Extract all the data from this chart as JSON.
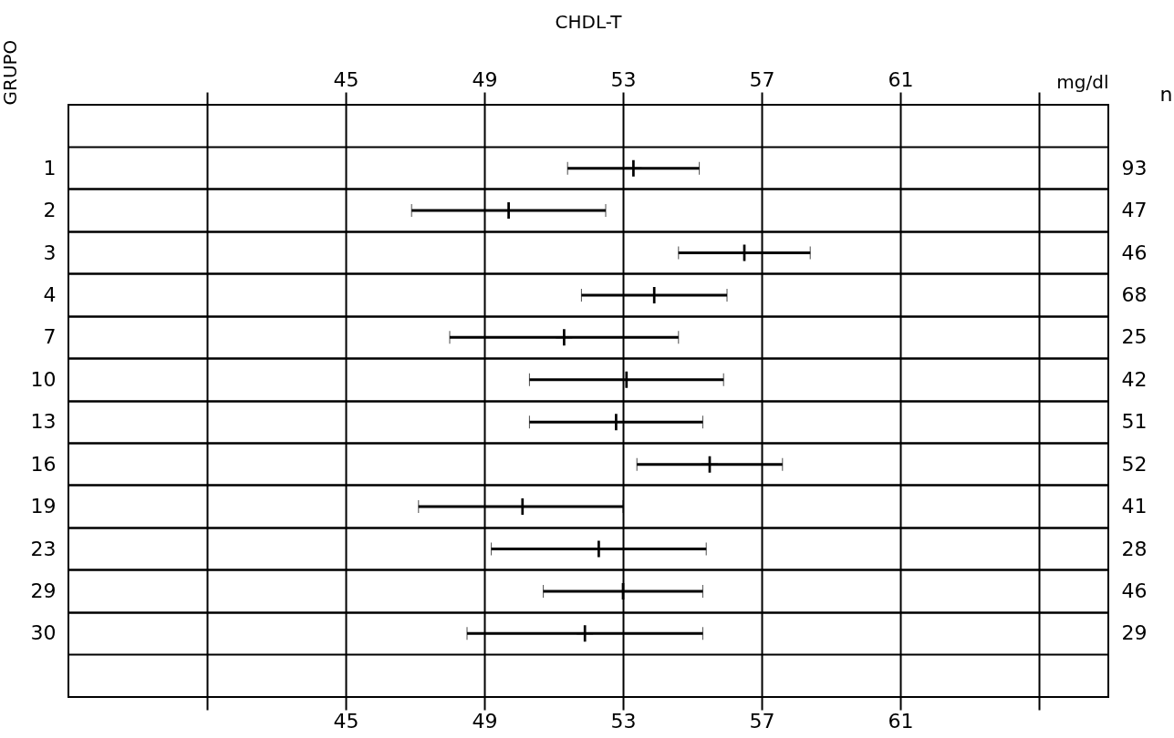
{
  "chart_data": {
    "type": "scatter",
    "orientation": "horizontal",
    "title": "CHDL-T",
    "ylabel": "GRUPO",
    "y2label": "n",
    "x2label": "mg/dl",
    "categories": [
      "1",
      "2",
      "3",
      "4",
      "7",
      "10",
      "13",
      "16",
      "19",
      "23",
      "29",
      "30"
    ],
    "y2_categories": [
      "93",
      "47",
      "46",
      "68",
      "25",
      "42",
      "51",
      "52",
      "41",
      "28",
      "46",
      "29"
    ],
    "values": [
      53.3,
      49.7,
      56.5,
      53.9,
      51.3,
      53.1,
      52.8,
      55.5,
      50.1,
      52.3,
      53.0,
      51.9
    ],
    "errors": [
      [
        51.4,
        55.2
      ],
      [
        46.9,
        52.5
      ],
      [
        54.6,
        58.4
      ],
      [
        51.8,
        56.0
      ],
      [
        48.0,
        54.6
      ],
      [
        50.3,
        55.9
      ],
      [
        50.3,
        55.3
      ],
      [
        53.4,
        57.6
      ],
      [
        47.1,
        53.0
      ],
      [
        49.2,
        55.4
      ],
      [
        50.7,
        55.3
      ],
      [
        48.5,
        55.3
      ]
    ],
    "color": "#000000",
    "xlim": [
      37,
      67
    ],
    "xticks": [
      {
        "value": 41,
        "label": null
      },
      45,
      49,
      53,
      57,
      61,
      {
        "value": 65,
        "label": null
      }
    ],
    "x2lim": [
      37,
      67
    ],
    "x2ticks": [
      {
        "value": 41,
        "label": null
      },
      45,
      49,
      53,
      57,
      61,
      {
        "value": 65,
        "label": null
      }
    ],
    "grid": true
  }
}
